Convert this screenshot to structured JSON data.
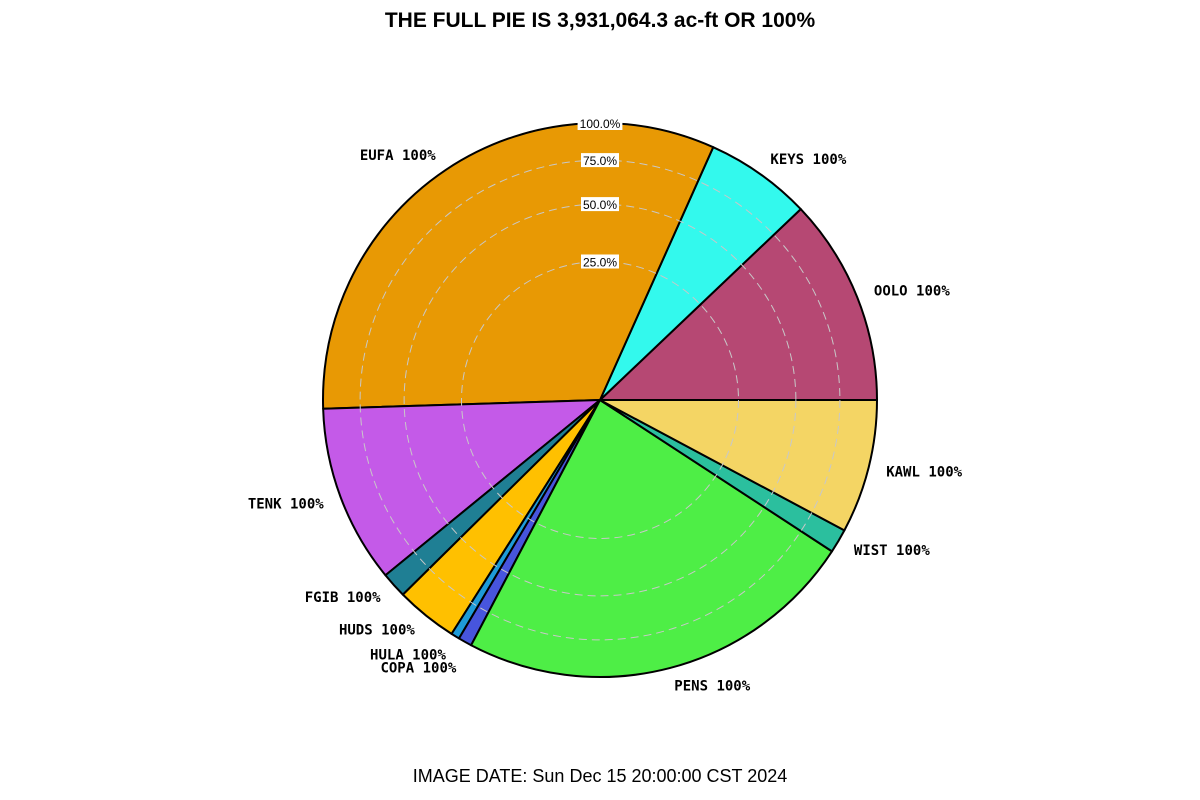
{
  "title": "THE FULL PIE IS 3,931,064.3 ac-ft OR 100%",
  "image_date": "IMAGE DATE: Sun Dec 15 20:00:00 CST 2024",
  "chart_data": {
    "type": "pie",
    "title": "THE FULL PIE IS 3,931,064.3 ac-ft OR 100%",
    "total_ac_ft": 3931064.3,
    "radial_ticks": [
      "25.0%",
      "50.0%",
      "75.0%",
      "100.0%"
    ],
    "radial_values": [
      25,
      50,
      75,
      100
    ],
    "grid": true,
    "slices": [
      {
        "name": "OOLO",
        "label": "OOLO 100%",
        "share_pct": 12.1,
        "fill_pct": 100,
        "color": "#b64873"
      },
      {
        "name": "KEYS",
        "label": "KEYS 100%",
        "share_pct": 6.2,
        "fill_pct": 100,
        "color": "#33f9ed"
      },
      {
        "name": "EUFA",
        "label": "EUFA 100%",
        "share_pct": 32.2,
        "fill_pct": 100,
        "color": "#e89904"
      },
      {
        "name": "TENK",
        "label": "TENK 100%",
        "share_pct": 10.4,
        "fill_pct": 100,
        "color": "#c45ae8"
      },
      {
        "name": "FGIB",
        "label": "FGIB 100%",
        "share_pct": 1.5,
        "fill_pct": 100,
        "color": "#1f7f94"
      },
      {
        "name": "HUDS",
        "label": "HUDS 100%",
        "share_pct": 3.6,
        "fill_pct": 100,
        "color": "#ffc000"
      },
      {
        "name": "HULA",
        "label": "HULA 100%",
        "share_pct": 0.5,
        "fill_pct": 100,
        "color": "#1e9bd8"
      },
      {
        "name": "COPA",
        "label": "COPA 100%",
        "share_pct": 0.8,
        "fill_pct": 100,
        "color": "#4755dd"
      },
      {
        "name": "PENS",
        "label": "PENS 100%",
        "share_pct": 23.5,
        "fill_pct": 100,
        "color": "#4eee46"
      },
      {
        "name": "WIST",
        "label": "WIST 100%",
        "share_pct": 1.4,
        "fill_pct": 100,
        "color": "#2bbf9e"
      },
      {
        "name": "KAWL",
        "label": "KAWL 100%",
        "share_pct": 7.8,
        "fill_pct": 100,
        "color": "#f4d564"
      }
    ]
  }
}
